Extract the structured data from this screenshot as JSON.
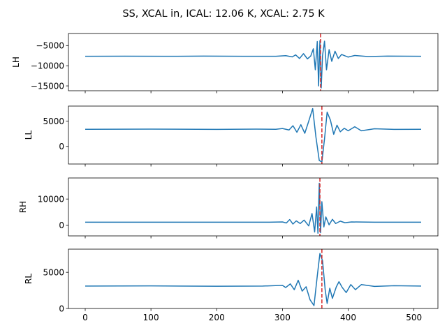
{
  "figure": {
    "title": "SS, XCAL in, ICAL: 12.06 K, XCAL: 2.75 K"
  },
  "chart_data": [
    {
      "type": "line",
      "ylabel": "LH",
      "ylim": [
        -16200,
        -2000
      ],
      "xlim": [
        -25.5,
        536.5
      ],
      "xticks": [
        0,
        100,
        200,
        300,
        400,
        500
      ],
      "yticks": [
        -15000,
        -10000,
        -5000
      ],
      "ytick_labels": [
        "−15000",
        "−10000",
        "−5000"
      ],
      "vline_x": 358,
      "series": [
        {
          "color": "#1f77b4",
          "points": [
            [
              0,
              -7650
            ],
            [
              60,
              -7620
            ],
            [
              120,
              -7660
            ],
            [
              180,
              -7610
            ],
            [
              240,
              -7660
            ],
            [
              290,
              -7640
            ],
            [
              305,
              -7500
            ],
            [
              315,
              -7800
            ],
            [
              320,
              -7300
            ],
            [
              326,
              -8200
            ],
            [
              332,
              -7000
            ],
            [
              338,
              -8300
            ],
            [
              343,
              -7600
            ],
            [
              347,
              -5800
            ],
            [
              350,
              -11000
            ],
            [
              353,
              -4000
            ],
            [
              355,
              -15000
            ],
            [
              357,
              -3800
            ],
            [
              359,
              -15500
            ],
            [
              361,
              -7500
            ],
            [
              364,
              -3900
            ],
            [
              367,
              -11000
            ],
            [
              371,
              -6000
            ],
            [
              375,
              -8900
            ],
            [
              380,
              -6400
            ],
            [
              385,
              -8200
            ],
            [
              390,
              -7200
            ],
            [
              400,
              -7850
            ],
            [
              410,
              -7450
            ],
            [
              430,
              -7720
            ],
            [
              460,
              -7600
            ],
            [
              511,
              -7650
            ]
          ]
        }
      ]
    },
    {
      "type": "line",
      "ylabel": "LL",
      "ylim": [
        -3500,
        8000
      ],
      "xlim": [
        -25.5,
        536.5
      ],
      "xticks": [
        0,
        100,
        200,
        300,
        400,
        500
      ],
      "yticks": [
        0,
        5000
      ],
      "ytick_labels": [
        "0",
        "5000"
      ],
      "vline_x": 360,
      "series": [
        {
          "color": "#1f77b4",
          "points": [
            [
              0,
              3400
            ],
            [
              100,
              3420
            ],
            [
              200,
              3380
            ],
            [
              260,
              3420
            ],
            [
              290,
              3400
            ],
            [
              300,
              3550
            ],
            [
              310,
              3250
            ],
            [
              316,
              4100
            ],
            [
              322,
              2800
            ],
            [
              328,
              4300
            ],
            [
              334,
              2600
            ],
            [
              340,
              5000
            ],
            [
              346,
              7500
            ],
            [
              351,
              1800
            ],
            [
              356,
              -2800
            ],
            [
              360,
              -3100
            ],
            [
              364,
              1500
            ],
            [
              368,
              6800
            ],
            [
              373,
              5200
            ],
            [
              378,
              2400
            ],
            [
              383,
              4200
            ],
            [
              388,
              2900
            ],
            [
              394,
              3600
            ],
            [
              400,
              3100
            ],
            [
              410,
              3900
            ],
            [
              420,
              3100
            ],
            [
              440,
              3500
            ],
            [
              470,
              3380
            ],
            [
              511,
              3400
            ]
          ]
        }
      ]
    },
    {
      "type": "line",
      "ylabel": "RH",
      "ylim": [
        -4000,
        18000
      ],
      "xlim": [
        -25.5,
        536.5
      ],
      "xticks": [
        0,
        100,
        200,
        300,
        400,
        500
      ],
      "yticks": [
        0,
        10000
      ],
      "ytick_labels": [
        "0",
        "10000"
      ],
      "vline_x": 357,
      "series": [
        {
          "color": "#1f77b4",
          "points": [
            [
              0,
              1200
            ],
            [
              100,
              1200
            ],
            [
              200,
              1200
            ],
            [
              280,
              1200
            ],
            [
              300,
              1300
            ],
            [
              306,
              900
            ],
            [
              311,
              2200
            ],
            [
              316,
              500
            ],
            [
              321,
              1700
            ],
            [
              327,
              700
            ],
            [
              333,
              2000
            ],
            [
              340,
              -200
            ],
            [
              345,
              4500
            ],
            [
              349,
              -2500
            ],
            [
              352,
              7000
            ],
            [
              354,
              -3000
            ],
            [
              356,
              16000
            ],
            [
              358,
              -2800
            ],
            [
              360,
              9000
            ],
            [
              363,
              -600
            ],
            [
              366,
              3200
            ],
            [
              371,
              200
            ],
            [
              376,
              2300
            ],
            [
              381,
              700
            ],
            [
              388,
              1600
            ],
            [
              395,
              1000
            ],
            [
              405,
              1300
            ],
            [
              440,
              1200
            ],
            [
              511,
              1200
            ]
          ]
        }
      ]
    },
    {
      "type": "line",
      "ylabel": "RL",
      "ylim": [
        0,
        8200
      ],
      "xlim": [
        -25.5,
        536.5
      ],
      "xticks": [
        0,
        100,
        200,
        300,
        400,
        500
      ],
      "yticks": [
        0,
        5000
      ],
      "ytick_labels": [
        "0",
        "5000"
      ],
      "vline_x": 360,
      "series": [
        {
          "color": "#1f77b4",
          "points": [
            [
              0,
              3100
            ],
            [
              100,
              3120
            ],
            [
              200,
              3080
            ],
            [
              270,
              3100
            ],
            [
              300,
              3200
            ],
            [
              305,
              2900
            ],
            [
              312,
              3400
            ],
            [
              318,
              2600
            ],
            [
              324,
              3900
            ],
            [
              330,
              2400
            ],
            [
              336,
              3000
            ],
            [
              342,
              1200
            ],
            [
              348,
              400
            ],
            [
              353,
              4500
            ],
            [
              357,
              7600
            ],
            [
              361,
              6600
            ],
            [
              365,
              2600
            ],
            [
              368,
              700
            ],
            [
              372,
              2800
            ],
            [
              376,
              1400
            ],
            [
              382,
              3000
            ],
            [
              386,
              3700
            ],
            [
              391,
              2900
            ],
            [
              397,
              2200
            ],
            [
              404,
              3300
            ],
            [
              411,
              2600
            ],
            [
              420,
              3300
            ],
            [
              440,
              3050
            ],
            [
              470,
              3150
            ],
            [
              511,
              3100
            ]
          ]
        }
      ]
    }
  ],
  "x_tick_labels": [
    "0",
    "100",
    "200",
    "300",
    "400",
    "500"
  ]
}
